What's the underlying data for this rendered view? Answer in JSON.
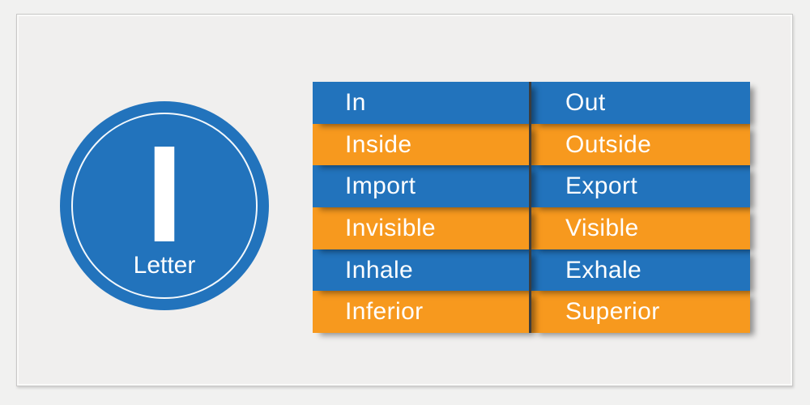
{
  "badge": {
    "letter": "I",
    "label": "Letter"
  },
  "table": {
    "rows": [
      {
        "left": "In",
        "right": "Out",
        "color": "blue"
      },
      {
        "left": "Inside",
        "right": "Outside",
        "color": "orange"
      },
      {
        "left": "Import",
        "right": "Export",
        "color": "blue"
      },
      {
        "left": "Invisible",
        "right": "Visible",
        "color": "orange"
      },
      {
        "left": "Inhale",
        "right": "Exhale",
        "color": "blue"
      },
      {
        "left": "Inferior",
        "right": "Superior",
        "color": "orange"
      }
    ]
  },
  "colors": {
    "blue": "#2273BC",
    "orange": "#F7991E",
    "text": "#FFFFFF",
    "divider": "#3C3C3C",
    "page_background": "#F1F1F0",
    "panel_background": "#F0EFEE",
    "panel_border": "#C9C8C7"
  }
}
